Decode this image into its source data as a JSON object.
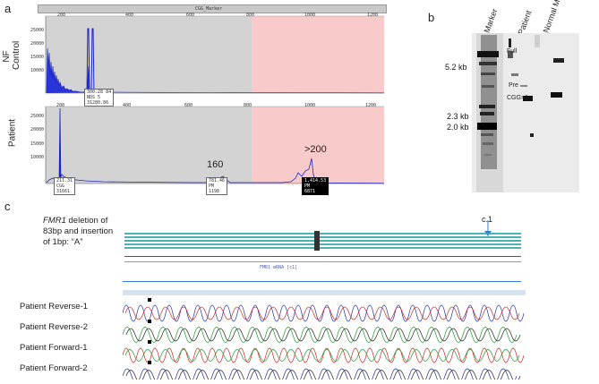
{
  "panel_a": {
    "letter": "a",
    "control_label_1": "NF",
    "control_label_2": "Control",
    "patient_label": "Patient",
    "header_bar_text": "CGG_Marker",
    "top_x_ticks": [
      "200",
      "400",
      "600",
      "800",
      "1000",
      "1200"
    ],
    "bottom_x_ticks": [
      "200",
      "400",
      "600",
      "800",
      "1000",
      "1200"
    ],
    "top_y_ticks": [
      "25000",
      "20000",
      "15000",
      "10000",
      "5000",
      "0"
    ],
    "bottom_y_ticks": [
      "25000",
      "20000",
      "15000",
      "10000",
      "5000",
      "0"
    ],
    "control_peak_box": [
      "300.28 84",
      "NDS 5",
      "31280.86"
    ],
    "peak_box_1": [
      "211.31",
      "CGG",
      "31661"
    ],
    "peak_box_2": [
      "781.46",
      "PM",
      "1198"
    ],
    "peak_box_3": [
      "1,414.53",
      "PM",
      "6871"
    ],
    "peak_160": "160",
    "peak_200": ">200"
  },
  "panel_b": {
    "letter": "b",
    "lane_labels": [
      "Marker",
      "Patient",
      "Normal Male"
    ],
    "size_labels": [
      "5.2 kb",
      "2.3 kb",
      "2.0 kb"
    ],
    "band_labels": [
      "Full",
      "Pre",
      "CGG=1"
    ]
  },
  "panel_c": {
    "letter": "c",
    "desc_italic": "FMR1",
    "desc_line1": " deletion of",
    "desc_line2": "83bp and insertion",
    "desc_line3": "of 1bp: “A”",
    "c1_label": "c.1",
    "ref_track_label": "FMR1 mRNA [c1]",
    "traces": [
      "Patient Reverse-1",
      "Patient Reverse-2",
      "Patient Forward-1",
      "Patient Forward-2"
    ]
  }
}
